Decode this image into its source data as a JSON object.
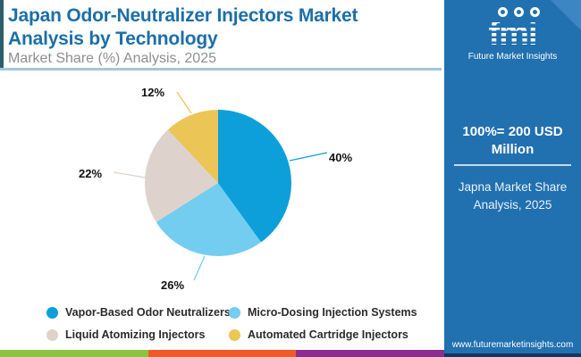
{
  "header": {
    "title": "Japan Odor-Neutralizer Injectors Market Analysis by Technology",
    "subtitle": "Market Share (%) Analysis, 2025"
  },
  "sidebar": {
    "logo_brand": "fmi",
    "logo_tagline": "Future Market Insights",
    "note_value": "100%= 200 USD Million",
    "note_caption": "Japna Market Share Analysis, 2025",
    "website": "www.futuremarketinsights.com",
    "background_color": "#2170b0",
    "bottom_bar_color": "#16365c"
  },
  "chart_data": {
    "type": "pie",
    "title": "Japan Odor-Neutralizer Injectors Market Analysis by Technology",
    "subtitle": "Market Share (%) Analysis, 2025",
    "categories": [
      "Vapor-Based Odor Neutralizers",
      "Micro-Dosing Injection Systems",
      "Liquid Atomizing Injectors",
      "Automated Cartridge Injectors"
    ],
    "values": [
      40,
      26,
      22,
      12
    ],
    "labels": [
      "40%",
      "26%",
      "22%",
      "12%"
    ],
    "colors": [
      "#0d9fd9",
      "#72cdf0",
      "#ded3cc",
      "#ecc557"
    ],
    "start_angle_deg": 0,
    "direction": "clockwise",
    "legend_position": "bottom"
  },
  "footer_stripe_colors": [
    "#8bc53f",
    "#f05a28",
    "#8c2e90"
  ]
}
